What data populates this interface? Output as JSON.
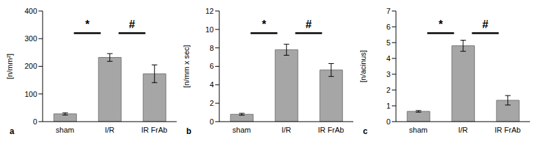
{
  "chart_data": [
    {
      "type": "bar",
      "panel": "a",
      "y_label": "[n/mm²]",
      "categories": [
        "sham",
        "I/R",
        "IR FrAb"
      ],
      "values": [
        28,
        232,
        173
      ],
      "errors": [
        4,
        14,
        32
      ],
      "color": "#a6a6a6",
      "ylim": [
        0,
        400
      ],
      "yticks": [
        0,
        100,
        200,
        300,
        400
      ],
      "grid": false,
      "annotations": [
        {
          "text": "*",
          "from": "sham",
          "to": "I/R"
        },
        {
          "text": "#",
          "from": "I/R",
          "to": "IR FrAb"
        }
      ]
    },
    {
      "type": "bar",
      "panel": "b",
      "y_label": "[n/mm x sec]",
      "categories": [
        "sham",
        "I/R",
        "IR FrAb"
      ],
      "values": [
        0.8,
        7.8,
        5.6
      ],
      "errors": [
        0.1,
        0.6,
        0.7
      ],
      "color": "#a6a6a6",
      "ylim": [
        0,
        12
      ],
      "yticks": [
        0,
        2,
        4,
        6,
        8,
        10,
        12
      ],
      "grid": false,
      "annotations": [
        {
          "text": "*",
          "from": "sham",
          "to": "I/R"
        },
        {
          "text": "#",
          "from": "I/R",
          "to": "IR FrAb"
        }
      ]
    },
    {
      "type": "bar",
      "panel": "c",
      "y_label": "[n/acinus]",
      "categories": [
        "sham",
        "I/R",
        "IR FrAb"
      ],
      "values": [
        0.65,
        4.8,
        1.35
      ],
      "errors": [
        0.05,
        0.35,
        0.3
      ],
      "color": "#a6a6a6",
      "ylim": [
        0,
        7
      ],
      "yticks": [
        0,
        1,
        2,
        3,
        4,
        5,
        6,
        7
      ],
      "grid": false,
      "annotations": [
        {
          "text": "*",
          "from": "sham",
          "to": "I/R"
        },
        {
          "text": "#",
          "from": "I/R",
          "to": "IR FrAb"
        }
      ]
    }
  ]
}
